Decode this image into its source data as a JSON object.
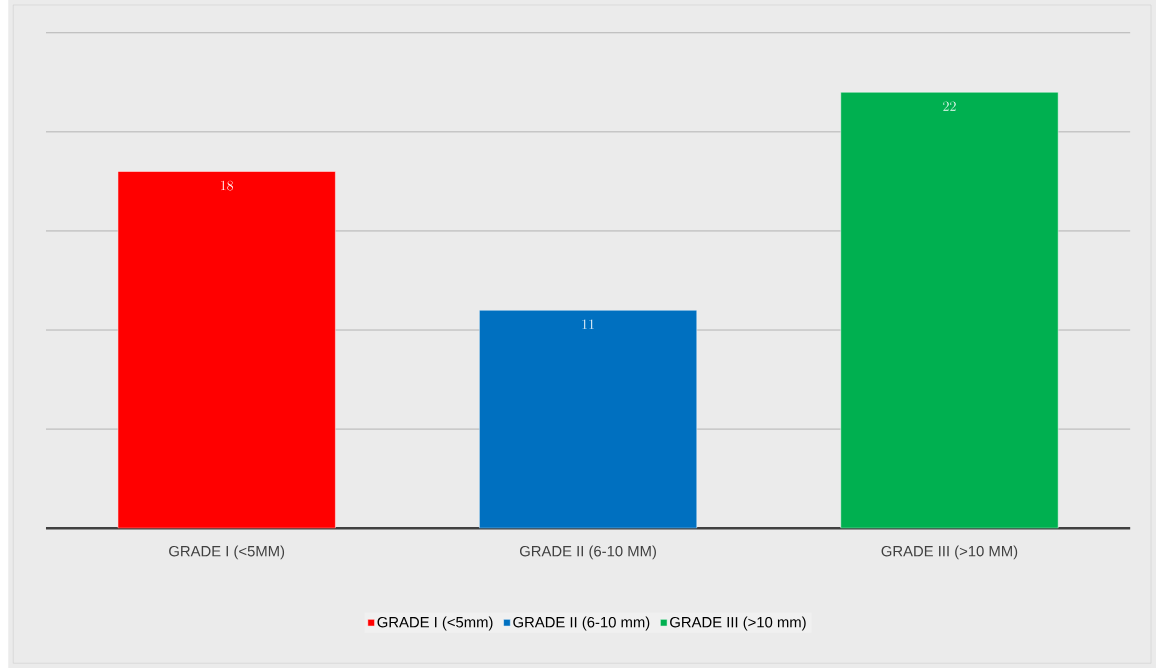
{
  "chart_data": {
    "type": "bar",
    "categories": [
      "GRADE I (<5MM)",
      "GRADE II (6-10 MM)",
      "GRADE III (>10 MM)"
    ],
    "series": [
      {
        "name": "GRADE I (<5mm)",
        "color": "#ff0000",
        "values": [
          18,
          null,
          null
        ]
      },
      {
        "name": "GRADE II (6-10 mm)",
        "color": "#0070c0",
        "values": [
          null,
          11,
          null
        ]
      },
      {
        "name": "GRADE III (>10 mm)",
        "color": "#00b050",
        "values": [
          null,
          null,
          22
        ]
      }
    ],
    "ylim": [
      0,
      25
    ],
    "yticks": [
      {
        "value": 0,
        "label": null
      },
      {
        "value": 5,
        "label": null
      },
      {
        "value": 10,
        "label": null
      },
      {
        "value": 15,
        "label": null
      },
      {
        "value": 20,
        "label": null
      },
      {
        "value": 25,
        "label": null
      }
    ],
    "tick_labels": "x",
    "grid": "y",
    "data_labels": true,
    "legend": "bottom"
  }
}
